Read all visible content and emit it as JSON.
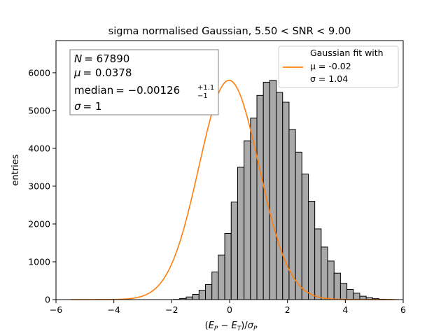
{
  "chart_data": {
    "type": "bar",
    "title": "sigma normalised Gaussian, 5.50 < SNR < 9.00",
    "xlabel": "(E_P − E_T)/σ_P",
    "ylabel": "entries",
    "xlim": [
      -6,
      6
    ],
    "ylim": [
      0,
      6850
    ],
    "xticks": [
      "−6",
      "−4",
      "−2",
      "0",
      "2",
      "4",
      "6"
    ],
    "xtick_values": [
      -6,
      -4,
      -2,
      0,
      2,
      4,
      6
    ],
    "yticks": [
      "0",
      "1000",
      "2000",
      "3000",
      "4000",
      "5000",
      "6000"
    ],
    "ytick_values": [
      0,
      1000,
      2000,
      3000,
      4000,
      5000,
      6000
    ],
    "bin_edges_start": -5.5,
    "bin_width": 0.2222,
    "values": [
      0,
      0,
      0,
      0,
      0,
      0,
      0,
      0,
      0,
      0,
      0,
      0,
      0,
      0,
      0,
      0,
      5,
      30,
      70,
      140,
      250,
      400,
      730,
      1180,
      1750,
      2580,
      3500,
      4200,
      4800,
      5400,
      5750,
      5800,
      5480,
      5220,
      4500,
      3900,
      3320,
      2600,
      1870,
      1390,
      1020,
      700,
      430,
      270,
      170,
      90,
      50,
      25,
      10,
      5,
      2,
      0
    ],
    "fit": {
      "type": "gaussian",
      "mu": -0.02,
      "sigma": 1.04,
      "peak": 5800,
      "x_range": [
        -5.5,
        5.7
      ],
      "color": "#ff7f0e"
    },
    "bar_fill": "#a9a9a9",
    "bar_edge": "#000000",
    "grid": false,
    "legend": {
      "placement": "top-right",
      "line1": "Gaussian fit with",
      "line2": "μ = -0.02",
      "line3": "σ = 1.04"
    },
    "stats_box": {
      "placement": "top-left",
      "n_label": "N",
      "n_value": "= 67890",
      "mu_label": "μ",
      "mu_value": "= 0.0378",
      "median_label": "median",
      "median_value": "= −0.00126",
      "median_up": "+1.1",
      "median_down": "−1",
      "sigma_label": "σ",
      "sigma_value": "= 1"
    }
  }
}
